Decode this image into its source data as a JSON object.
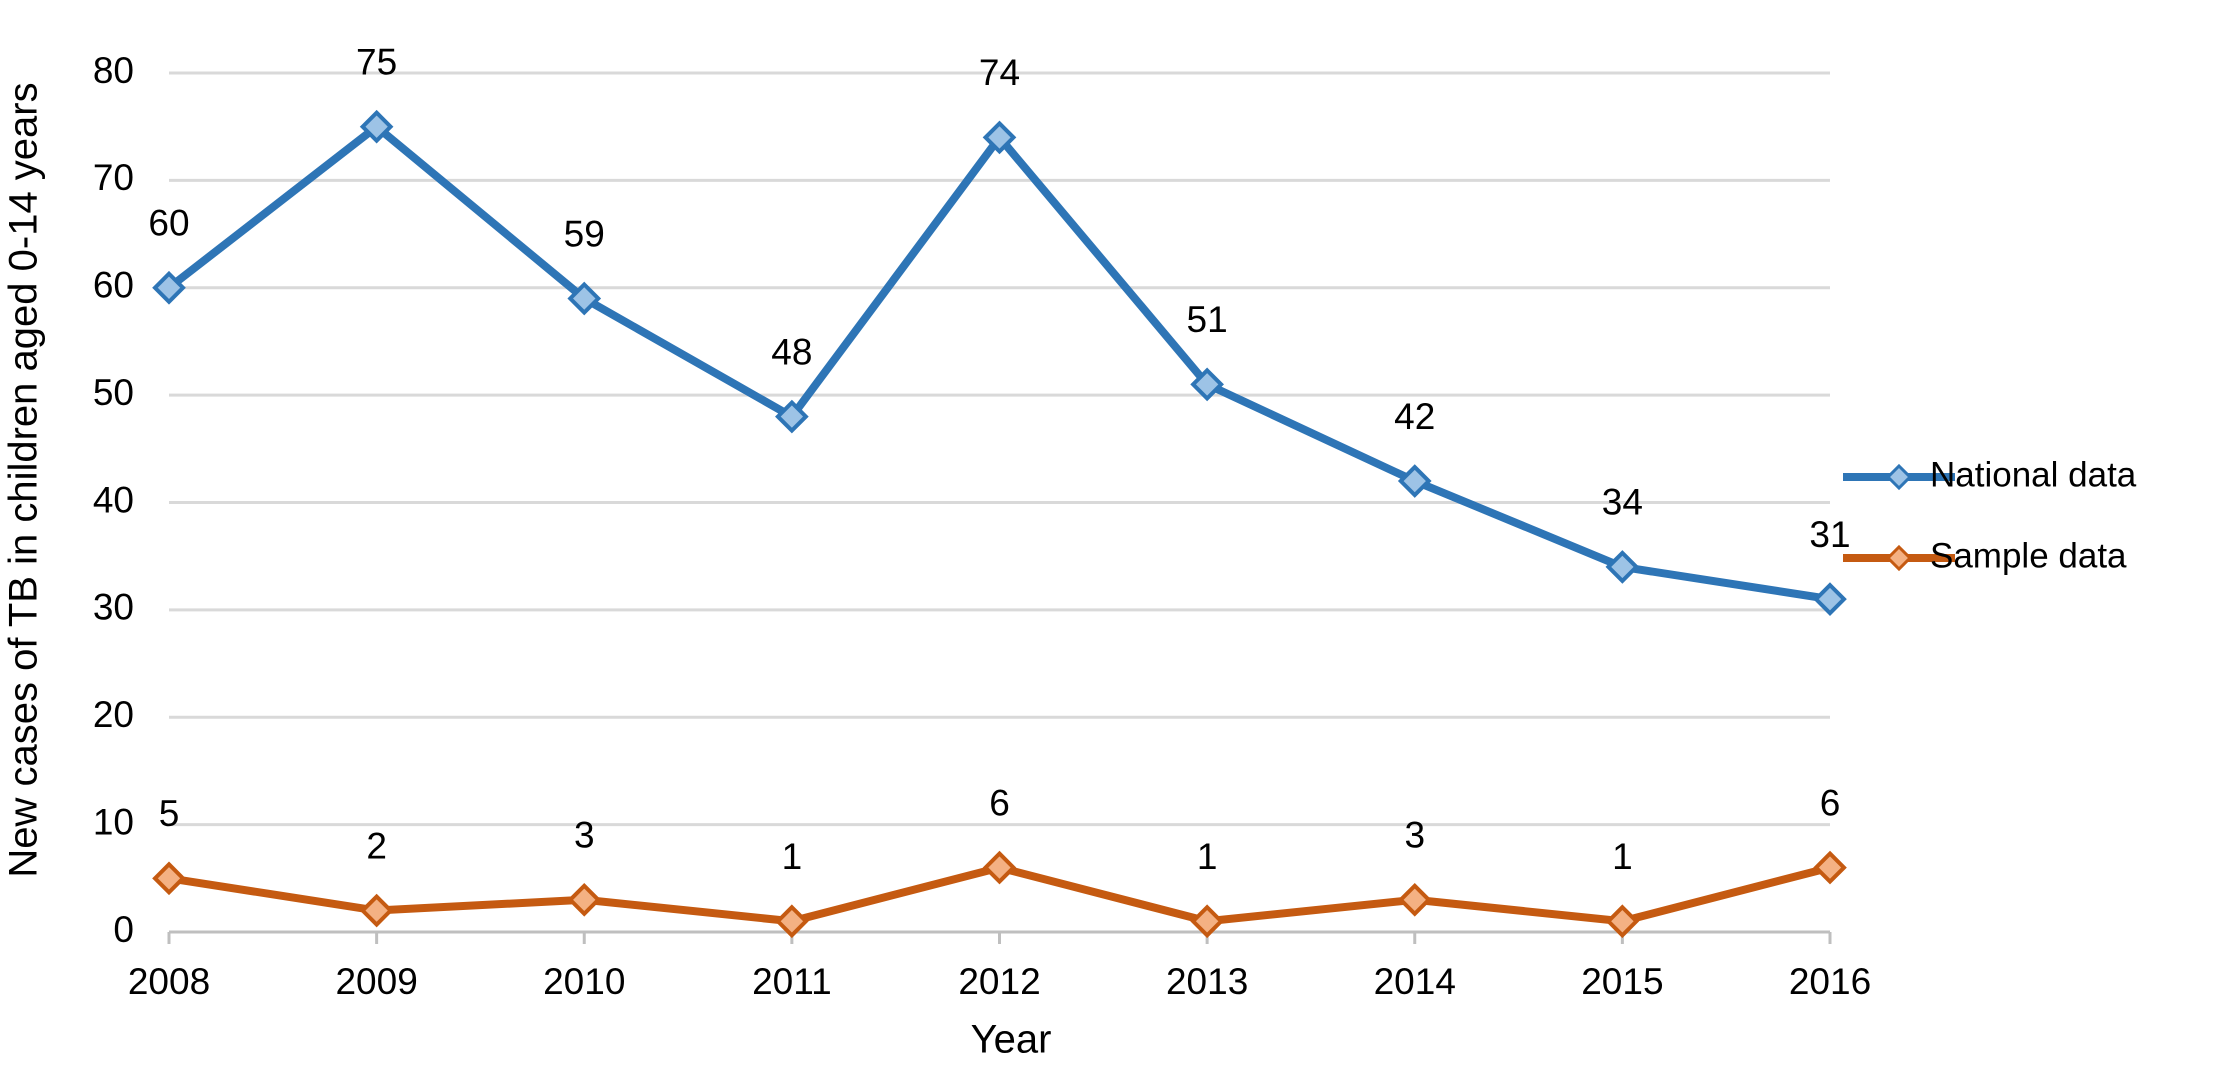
{
  "chart_data": {
    "type": "line",
    "x_label": "Year",
    "y_label": "New cases of TB in children aged 0-14 years",
    "categories": [
      "2008",
      "2009",
      "2010",
      "2011",
      "2012",
      "2013",
      "2014",
      "2015",
      "2016"
    ],
    "series": [
      {
        "name": "National data",
        "color": "#2e75b6",
        "marker_color": "#9dc3e6",
        "values": [
          60,
          75,
          59,
          48,
          74,
          51,
          42,
          34,
          31
        ]
      },
      {
        "name": "Sample data",
        "color": "#c55a11",
        "marker_color": "#f4b183",
        "values": [
          5,
          2,
          3,
          1,
          6,
          1,
          3,
          1,
          6
        ]
      }
    ],
    "ylim": [
      0,
      80
    ],
    "yticks": [
      0,
      10,
      20,
      30,
      40,
      50,
      60,
      70,
      80
    ],
    "grid": true,
    "legend": "right",
    "data_labels": true
  }
}
